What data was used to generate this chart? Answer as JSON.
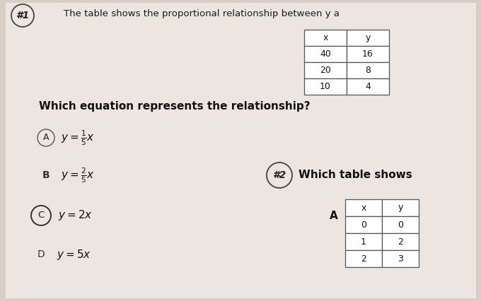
{
  "bg_color": "#d8cec8",
  "paper_color": "#ede5df",
  "problem1_number": "#1",
  "problem1_text": "The table shows the proportional relationship between y a",
  "table1": {
    "headers": [
      "x",
      "y"
    ],
    "rows": [
      [
        "40",
        "16"
      ],
      [
        "20",
        "8"
      ],
      [
        "10",
        "4"
      ]
    ]
  },
  "question1": "Which equation represents the relationship?",
  "problem2_number": "#2",
  "problem2_text": "Which table shows",
  "table2_label": "A",
  "table2": {
    "headers": [
      "x",
      "y"
    ],
    "rows": [
      [
        "0",
        "0"
      ],
      [
        "1",
        "2"
      ],
      [
        "2",
        "3"
      ]
    ]
  }
}
